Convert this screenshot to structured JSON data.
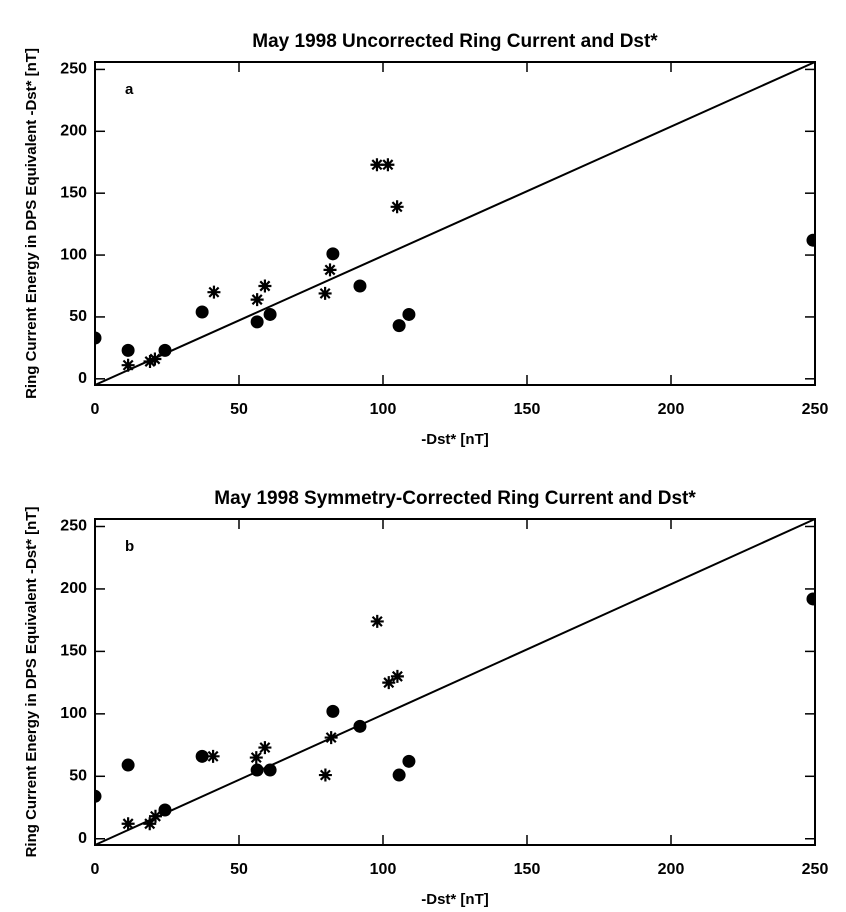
{
  "chart_data": [
    {
      "type": "scatter",
      "title": "May 1998 Uncorrected Ring Current and Dst*",
      "panel_label": "a",
      "x_label": "-Dst* [nT]",
      "y_label": "Ring Current Energy in DPS Equivalent -Dst* [nT]",
      "xlim": [
        0,
        250
      ],
      "ylim": [
        -5,
        256
      ],
      "xticks": [
        0,
        50,
        100,
        150,
        200,
        250
      ],
      "yticks": [
        0,
        50,
        100,
        150,
        200,
        250
      ],
      "series": [
        {
          "marker": "circle",
          "color": "#000000",
          "x": [
            0,
            11.5,
            24.3,
            37.2,
            56.3,
            60.8,
            82.6,
            92,
            105.6,
            109,
            249.3
          ],
          "values": [
            33,
            23,
            23,
            54,
            46,
            52,
            101,
            75,
            43,
            52,
            112
          ]
        },
        {
          "marker": "asterisk",
          "color": "#000000",
          "x": [
            11.5,
            19.1,
            20.8,
            41.3,
            56.3,
            59,
            79.9,
            81.6,
            97.9,
            101.7,
            104.9
          ],
          "values": [
            11,
            14,
            16,
            70,
            64,
            75,
            69,
            88,
            173,
            173,
            139
          ]
        }
      ]
    },
    {
      "type": "scatter",
      "title": "May 1998 Symmetry-Corrected Ring Current and Dst*",
      "panel_label": "b",
      "x_label": "-Dst* [nT]",
      "y_label": "Ring Current Energy in DPS Equivalent -Dst* [nT]",
      "xlim": [
        0,
        250
      ],
      "ylim": [
        -5,
        256
      ],
      "xticks": [
        0,
        50,
        100,
        150,
        200,
        250
      ],
      "yticks": [
        0,
        50,
        100,
        150,
        200,
        250
      ],
      "series": [
        {
          "marker": "circle",
          "color": "#000000",
          "x": [
            0,
            11.5,
            24.3,
            37.2,
            56.3,
            60.8,
            82.6,
            92,
            105.6,
            109,
            249.3
          ],
          "values": [
            34,
            59,
            23,
            66,
            55,
            55,
            102,
            90,
            51,
            62,
            192
          ]
        },
        {
          "marker": "asterisk",
          "color": "#000000",
          "x": [
            11.5,
            19,
            21,
            41,
            56,
            59,
            80,
            82,
            98,
            102,
            105
          ],
          "values": [
            12,
            12,
            18,
            66,
            65,
            73,
            51,
            81,
            174,
            125,
            130
          ]
        }
      ]
    }
  ]
}
